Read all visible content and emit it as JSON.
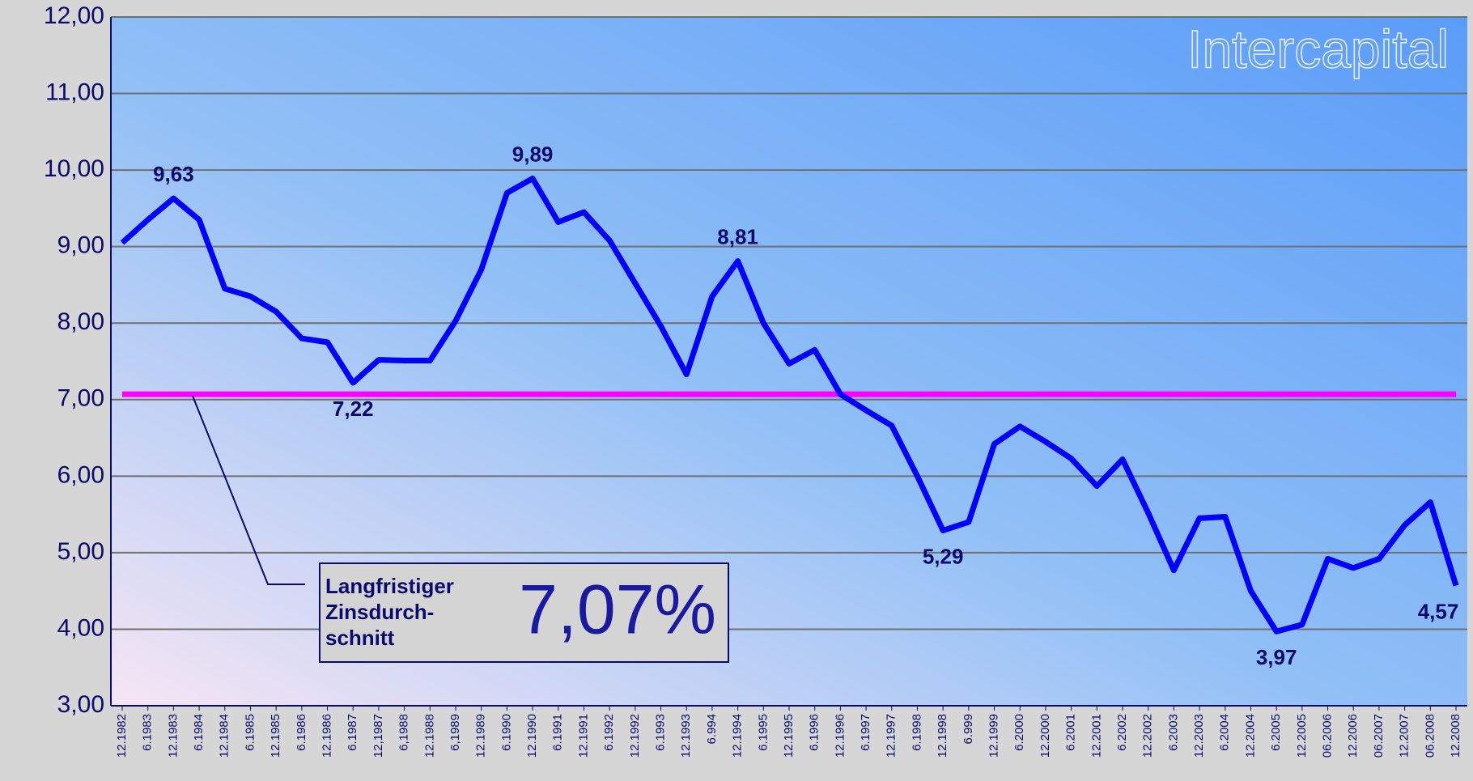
{
  "chart_data": {
    "type": "line",
    "watermark": "Intercapital",
    "categories": [
      "12.1982",
      "6.1983",
      "12.1983",
      "6.1984",
      "12.1984",
      "6.1985",
      "12.1985",
      "6.1986",
      "12.1986",
      "6.1987",
      "12,1987",
      "6,1988",
      "12.1988",
      "6,1989",
      "12.1989",
      "6.1990",
      "12.1990",
      "6.1991",
      "12.1991",
      "6.1992",
      "12.1992",
      "6.1993",
      "12.1993",
      "6.994",
      "12.1994",
      "6.1995",
      "12.1995",
      "6.1996",
      "12.1996",
      "6.1997",
      "12.1997",
      "6.1998",
      "12.1998",
      "6.999",
      "12.1999",
      "6.2000",
      "12.2000",
      "6.2001",
      "12.2001",
      "6.2002",
      "12.2002",
      "6.2003",
      "12.2003",
      "6.2004",
      "12.2004",
      "6.2005",
      "12.2005",
      "06.2006",
      "12.2006",
      "06.2007",
      "12.2007",
      "06.2008",
      "12.2008"
    ],
    "series": [
      {
        "color": "#0000ff",
        "values": [
          9.05,
          9.35,
          9.63,
          9.35,
          8.45,
          8.35,
          8.15,
          7.8,
          7.75,
          7.22,
          7.52,
          7.51,
          7.51,
          8.03,
          8.7,
          9.7,
          9.89,
          9.32,
          9.45,
          9.08,
          8.52,
          7.96,
          7.33,
          8.35,
          8.81,
          8.0,
          7.47,
          7.65,
          7.07,
          6.86,
          6.66,
          6.0,
          5.29,
          5.4,
          6.42,
          6.65,
          6.45,
          6.23,
          5.87,
          6.22,
          5.52,
          4.77,
          5.45,
          5.47,
          4.5,
          3.97,
          4.06,
          4.92,
          4.8,
          4.92,
          5.36,
          5.66,
          4.57
        ],
        "value_labels": [
          null,
          null,
          "9,63",
          null,
          null,
          null,
          null,
          null,
          null,
          "7,22",
          null,
          null,
          null,
          null,
          null,
          null,
          "9,89",
          null,
          null,
          null,
          null,
          null,
          null,
          null,
          "8,81",
          null,
          null,
          null,
          null,
          null,
          null,
          null,
          "5,29",
          null,
          null,
          null,
          null,
          null,
          null,
          null,
          null,
          null,
          null,
          null,
          null,
          "3,97",
          null,
          null,
          null,
          null,
          null,
          null,
          "4,57"
        ]
      }
    ],
    "average": {
      "value": 7.07,
      "label": "7,07%",
      "color": "#ff00ff",
      "text": [
        "Langfristiger",
        "Zinsdurch-",
        "schnitt"
      ]
    },
    "ylim": [
      3,
      12
    ],
    "yticks": [
      {
        "value": 3,
        "label": "3,00"
      },
      {
        "value": 4,
        "label": "4,00"
      },
      {
        "value": 5,
        "label": "5,00"
      },
      {
        "value": 6,
        "label": "6,00"
      },
      {
        "value": 7,
        "label": "7,00"
      },
      {
        "value": 8,
        "label": "8,00"
      },
      {
        "value": 9,
        "label": "9,00"
      },
      {
        "value": 10,
        "label": "10,00"
      },
      {
        "value": 11,
        "label": "11,00"
      },
      {
        "value": 12,
        "label": "12,00"
      }
    ],
    "grid": true
  }
}
